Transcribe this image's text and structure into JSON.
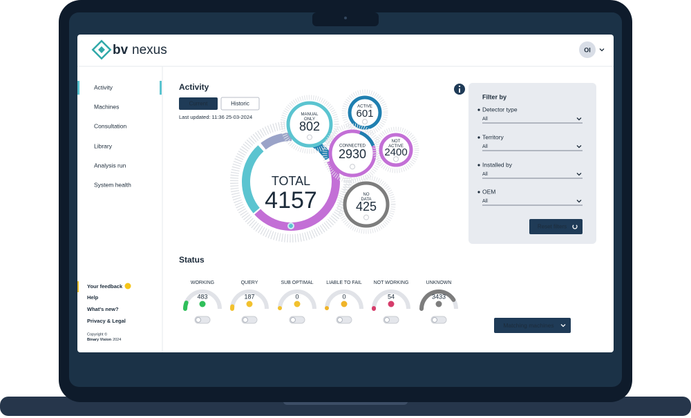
{
  "brand": {
    "prefix": "bv",
    "name": "nexus"
  },
  "user_initials": "OI",
  "nav": [
    "Activity",
    "Machines",
    "Consultation",
    "Library",
    "Analysis run",
    "System health"
  ],
  "footer_links": [
    "Your feedback",
    "Help",
    "What's new?",
    "Privacy & Legal"
  ],
  "copyright": {
    "notice": "Copyright ©",
    "company": "Binary Vision",
    "year": "2024"
  },
  "activity": {
    "title": "Activity",
    "tabs": [
      "Current",
      "Historic"
    ],
    "last_updated": "Last updated: 11:36 25-03-2024",
    "total": {
      "label": "TOTAL",
      "value": "4157"
    },
    "bubbles": [
      {
        "label": [
          "MANUAL",
          "ONLY"
        ],
        "value": "802",
        "color": "#5bc4d0"
      },
      {
        "label": [
          "ACTIVE"
        ],
        "value": "601",
        "color": "#1f7fb0"
      },
      {
        "label": [
          "CONNECTED"
        ],
        "value": "2930",
        "color": "#c36fd6"
      },
      {
        "label": [
          "NOT",
          "ACTIVE"
        ],
        "value": "2400",
        "color": "#c36fd6"
      },
      {
        "label": [
          "NO",
          "DATA"
        ],
        "value": "425",
        "color": "#7d7d7d"
      }
    ]
  },
  "filter": {
    "title": "Filter by",
    "fields": [
      {
        "label": "Detector type",
        "value": "All"
      },
      {
        "label": "Territory",
        "value": "All"
      },
      {
        "label": "Installed by",
        "value": "All"
      },
      {
        "label": "OEM",
        "value": "All"
      }
    ],
    "button": "Reset filters"
  },
  "status": {
    "title": "Status",
    "items": [
      {
        "label": "WORKING",
        "value": "483",
        "color": "#2fbf5a"
      },
      {
        "label": "QUERY",
        "value": "187",
        "color": "#f2c12e"
      },
      {
        "label": "SUB OPTIMAL",
        "value": "0",
        "color": "#f2c12e"
      },
      {
        "label": "LIABLE TO FAIL",
        "value": "0",
        "color": "#f0b429"
      },
      {
        "label": "NOT WORKING",
        "value": "54",
        "color": "#d63d6b"
      },
      {
        "label": "UNKNOWN",
        "value": "3433",
        "color": "#7d7d7d"
      }
    ],
    "button": "Matching machines"
  }
}
